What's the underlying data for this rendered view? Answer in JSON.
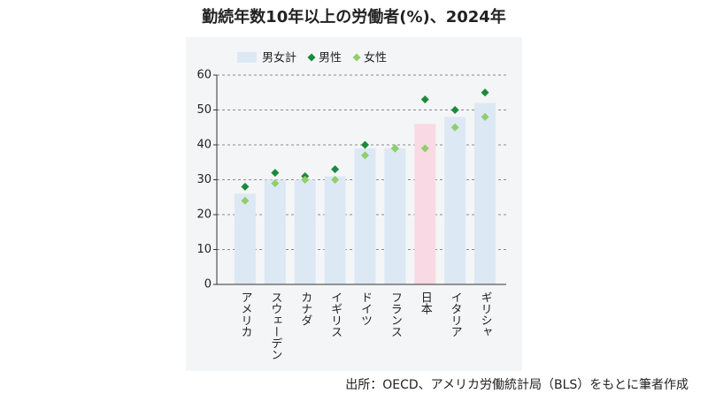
{
  "chart_data": {
    "type": "bar",
    "title": "勤続年数10年以上の労働者(%)、2024年",
    "categories": [
      "アメリカ",
      "スウェーデン",
      "カナダ",
      "イギリス",
      "ドイツ",
      "フランス",
      "日本",
      "イタリア",
      "ギリシャ"
    ],
    "series": [
      {
        "name": "男女計",
        "kind": "bar",
        "color": "#dde8f5",
        "colors": [
          "#dde8f5",
          "#dde8f5",
          "#dde8f5",
          "#dde8f5",
          "#dde8f5",
          "#dde8f5",
          "#f9d9e3",
          "#dde8f5",
          "#dde8f5"
        ],
        "values": [
          26,
          30,
          30,
          31,
          39,
          39,
          46,
          48,
          52
        ]
      },
      {
        "name": "男性",
        "kind": "marker",
        "color": "#1a8a3c",
        "values": [
          28,
          32,
          31,
          33,
          40,
          39,
          53,
          50,
          55
        ]
      },
      {
        "name": "女性",
        "kind": "marker",
        "color": "#8fcf6a",
        "values": [
          24,
          29,
          30,
          30,
          37,
          39,
          39,
          45,
          48
        ]
      }
    ],
    "ylim": [
      0,
      60
    ],
    "yticks": [
      0,
      10,
      20,
      30,
      40,
      50,
      60
    ],
    "grid": true,
    "source": "出所：OECD、アメリカ労働統計局（BLS）をもとに筆者作成"
  }
}
